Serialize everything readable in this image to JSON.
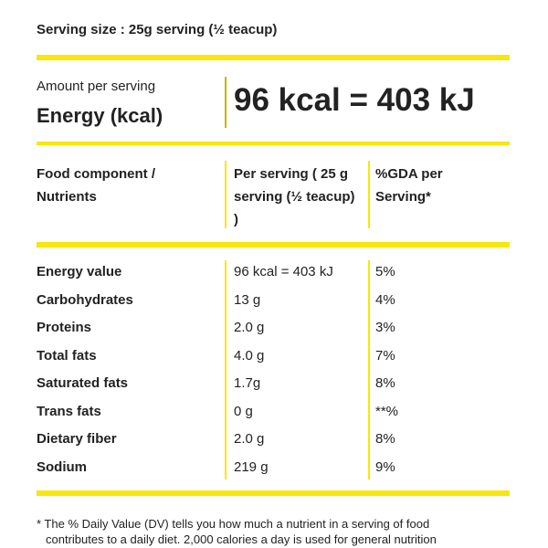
{
  "serving_size": "Serving size : 25g serving (½ teacup)",
  "energy": {
    "amount_label": "Amount per serving",
    "label": "Energy (kcal)",
    "value": "96 kcal = 403 kJ"
  },
  "table": {
    "headers": [
      "Food component / Nutrients",
      "Per serving ( 25 g serving (½ teacup) )",
      "%GDA per Serving*"
    ],
    "rows": [
      [
        "Energy value",
        "96 kcal = 403 kJ",
        "5%"
      ],
      [
        "Carbohydrates",
        "13 g",
        "4%"
      ],
      [
        "Proteins",
        "2.0 g",
        "3%"
      ],
      [
        "Total fats",
        "4.0 g",
        "7%"
      ],
      [
        "Saturated fats",
        "1.7g",
        "8%"
      ],
      [
        "Trans fats",
        "0 g",
        "**%"
      ],
      [
        "Dietary fiber",
        "2.0 g",
        "8%"
      ],
      [
        "Sodium",
        "219 g",
        "9%"
      ]
    ]
  },
  "footnote": [
    "* The % Daily Value (DV) tells you how much a nutrient in a serving of food",
    "contributes to a daily diet. 2,000 calories a day is used for general nutrition"
  ]
}
